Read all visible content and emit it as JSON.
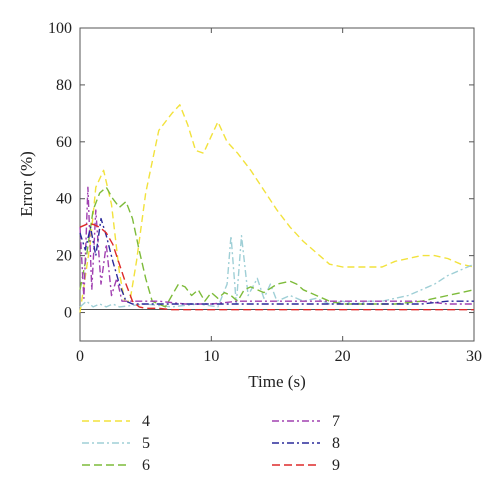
{
  "chart_data": {
    "type": "line",
    "xlabel": "Time (s)",
    "ylabel": "Error (%)",
    "xlim": [
      0,
      30
    ],
    "ylim": [
      -10,
      100
    ],
    "xticks": [
      0,
      10,
      20,
      30
    ],
    "yticks": [
      0,
      20,
      40,
      60,
      80,
      100
    ],
    "legend_position": "bottom",
    "series": [
      {
        "name": "4",
        "color": "#f2e23c",
        "dash": "7,4",
        "points": [
          [
            0,
            0
          ],
          [
            0.8,
            25
          ],
          [
            1.2,
            44
          ],
          [
            1.8,
            50
          ],
          [
            2.4,
            38
          ],
          [
            3.0,
            14
          ],
          [
            3.4,
            4
          ],
          [
            3.8,
            4
          ],
          [
            4.3,
            18
          ],
          [
            5.0,
            42
          ],
          [
            6.0,
            64
          ],
          [
            7.0,
            70
          ],
          [
            7.6,
            73
          ],
          [
            8.2,
            66
          ],
          [
            8.8,
            57
          ],
          [
            9.4,
            56
          ],
          [
            10.0,
            62
          ],
          [
            10.5,
            67
          ],
          [
            11.2,
            60
          ],
          [
            12.0,
            56
          ],
          [
            13.0,
            50
          ],
          [
            14.0,
            43
          ],
          [
            15.0,
            36
          ],
          [
            16.0,
            30
          ],
          [
            17.0,
            25
          ],
          [
            18.0,
            21
          ],
          [
            19.0,
            17
          ],
          [
            20.0,
            16
          ],
          [
            21.0,
            16
          ],
          [
            22.0,
            16
          ],
          [
            23.0,
            16
          ],
          [
            24.0,
            18
          ],
          [
            25.0,
            19
          ],
          [
            26.0,
            20
          ],
          [
            27.0,
            20
          ],
          [
            28.0,
            19
          ],
          [
            29.0,
            17
          ],
          [
            30.0,
            16
          ]
        ]
      },
      {
        "name": "5",
        "color": "#9fcfd6",
        "dash": "7,3,2,3",
        "points": [
          [
            0,
            2
          ],
          [
            0.5,
            4
          ],
          [
            1.0,
            2
          ],
          [
            1.5,
            3
          ],
          [
            2.0,
            2
          ],
          [
            2.5,
            3
          ],
          [
            3.0,
            2
          ],
          [
            5.0,
            3
          ],
          [
            7.0,
            2
          ],
          [
            9.0,
            3
          ],
          [
            10.5,
            2
          ],
          [
            11.2,
            10
          ],
          [
            11.5,
            27
          ],
          [
            11.9,
            3
          ],
          [
            12.3,
            27
          ],
          [
            12.8,
            6
          ],
          [
            13.5,
            12
          ],
          [
            14.0,
            5
          ],
          [
            14.5,
            10
          ],
          [
            15.0,
            4
          ],
          [
            16.0,
            6
          ],
          [
            17.0,
            4
          ],
          [
            18.0,
            5
          ],
          [
            19.0,
            3
          ],
          [
            20.0,
            4
          ],
          [
            21.0,
            3
          ],
          [
            22.0,
            4
          ],
          [
            23.0,
            4
          ],
          [
            24.0,
            5
          ],
          [
            25.0,
            6
          ],
          [
            26.0,
            8
          ],
          [
            27.0,
            10
          ],
          [
            28.0,
            13
          ],
          [
            29.0,
            15
          ],
          [
            30.0,
            17
          ]
        ]
      },
      {
        "name": "6",
        "color": "#7dbb3a",
        "dash": "8,4",
        "points": [
          [
            0,
            8
          ],
          [
            0.5,
            20
          ],
          [
            1.0,
            36
          ],
          [
            1.5,
            42
          ],
          [
            2.0,
            44
          ],
          [
            2.5,
            40
          ],
          [
            3.0,
            37
          ],
          [
            3.5,
            39
          ],
          [
            4.0,
            33
          ],
          [
            4.5,
            22
          ],
          [
            5.0,
            12
          ],
          [
            5.5,
            4
          ],
          [
            6.0,
            3
          ],
          [
            6.5,
            2
          ],
          [
            7.0,
            6
          ],
          [
            7.5,
            10
          ],
          [
            8.0,
            9
          ],
          [
            8.5,
            6
          ],
          [
            9.0,
            8
          ],
          [
            9.5,
            4
          ],
          [
            10.0,
            7
          ],
          [
            10.5,
            5
          ],
          [
            11.0,
            7
          ],
          [
            11.5,
            6
          ],
          [
            12.0,
            4
          ],
          [
            12.5,
            8
          ],
          [
            13.0,
            9
          ],
          [
            14.0,
            7
          ],
          [
            15.0,
            10
          ],
          [
            16.0,
            11
          ],
          [
            16.5,
            10
          ],
          [
            17.0,
            8
          ],
          [
            18.0,
            6
          ],
          [
            19.0,
            4
          ],
          [
            20.0,
            3
          ],
          [
            22.0,
            3
          ],
          [
            24.0,
            3
          ],
          [
            26.0,
            4
          ],
          [
            28.0,
            6
          ],
          [
            30.0,
            8
          ]
        ]
      },
      {
        "name": "7",
        "color": "#a040b0",
        "dash": "7,3,2,3",
        "points": [
          [
            0,
            30
          ],
          [
            0.3,
            5
          ],
          [
            0.6,
            44
          ],
          [
            0.9,
            8
          ],
          [
            1.2,
            36
          ],
          [
            1.6,
            10
          ],
          [
            2.0,
            24
          ],
          [
            2.4,
            6
          ],
          [
            2.8,
            12
          ],
          [
            3.2,
            4
          ],
          [
            4.0,
            4
          ],
          [
            6.0,
            4
          ],
          [
            8.0,
            3
          ],
          [
            10.0,
            3
          ],
          [
            12.0,
            4
          ],
          [
            14.0,
            4
          ],
          [
            16.0,
            4
          ],
          [
            18.0,
            4
          ],
          [
            20.0,
            4
          ],
          [
            24.0,
            4
          ],
          [
            26.0,
            4
          ],
          [
            28.0,
            3
          ],
          [
            30.0,
            3
          ]
        ]
      },
      {
        "name": "8",
        "color": "#2a2a9a",
        "dash": "7,3,2,3",
        "points": [
          [
            0,
            28
          ],
          [
            0.4,
            22
          ],
          [
            0.8,
            30
          ],
          [
            1.2,
            20
          ],
          [
            1.6,
            33
          ],
          [
            2.0,
            27
          ],
          [
            2.5,
            18
          ],
          [
            3.0,
            10
          ],
          [
            3.5,
            4
          ],
          [
            4.0,
            3
          ],
          [
            6.0,
            3
          ],
          [
            8.0,
            3
          ],
          [
            10.0,
            3
          ],
          [
            12.0,
            3
          ],
          [
            14.0,
            3
          ],
          [
            16.0,
            3
          ],
          [
            18.0,
            3
          ],
          [
            20.0,
            3
          ],
          [
            22.0,
            3
          ],
          [
            24.0,
            3
          ],
          [
            26.0,
            3
          ],
          [
            28.0,
            4
          ],
          [
            30.0,
            4
          ]
        ]
      },
      {
        "name": "9",
        "color": "#dd2a2a",
        "dash": "8,4",
        "points": [
          [
            0,
            30
          ],
          [
            0.5,
            31
          ],
          [
            1.0,
            31
          ],
          [
            1.5,
            30
          ],
          [
            2.0,
            28
          ],
          [
            2.5,
            24
          ],
          [
            3.0,
            17
          ],
          [
            3.5,
            10
          ],
          [
            4.0,
            4
          ],
          [
            4.5,
            2
          ],
          [
            5.0,
            1.5
          ],
          [
            6.0,
            1.5
          ],
          [
            7.0,
            1
          ],
          [
            8.0,
            1
          ],
          [
            10.0,
            1
          ],
          [
            12.0,
            1
          ],
          [
            14.0,
            1
          ],
          [
            16.0,
            1
          ],
          [
            18.0,
            1
          ],
          [
            20.0,
            1
          ],
          [
            22.0,
            1
          ],
          [
            24.0,
            1
          ],
          [
            26.0,
            1
          ],
          [
            28.0,
            1
          ],
          [
            30.0,
            1
          ]
        ]
      }
    ],
    "legend": [
      {
        "label": "4",
        "color": "#f2e23c",
        "dash": "7,4"
      },
      {
        "label": "5",
        "color": "#9fcfd6",
        "dash": "7,3,2,3"
      },
      {
        "label": "6",
        "color": "#7dbb3a",
        "dash": "8,4"
      },
      {
        "label": "7",
        "color": "#a040b0",
        "dash": "7,3,2,3"
      },
      {
        "label": "8",
        "color": "#2a2a9a",
        "dash": "7,3,2,3"
      },
      {
        "label": "9",
        "color": "#dd2a2a",
        "dash": "8,4"
      }
    ]
  }
}
